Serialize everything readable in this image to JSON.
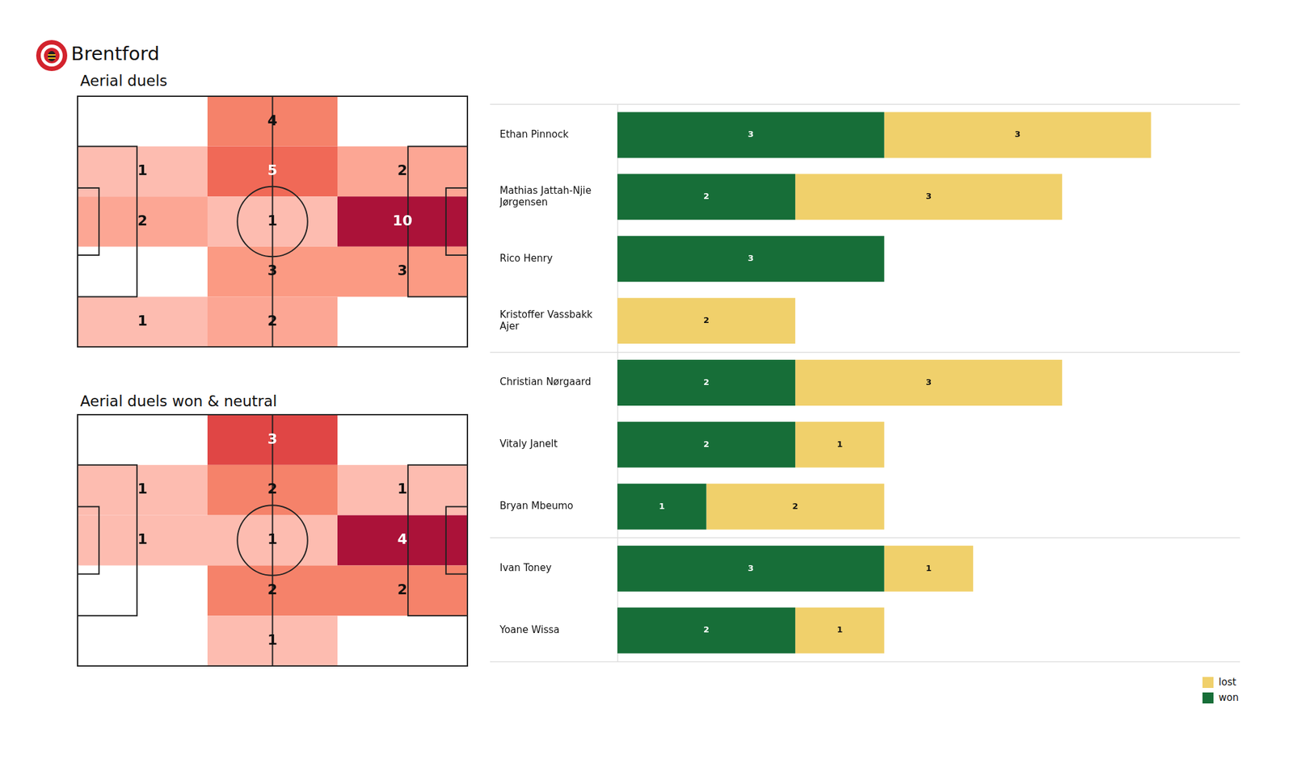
{
  "title": "Brentford",
  "chart_data": [
    {
      "type": "heatmap",
      "title": "Aerial duels",
      "cells": [
        [
          null,
          4,
          null
        ],
        [
          1,
          5,
          2
        ],
        [
          2,
          1,
          10
        ],
        [
          null,
          3,
          3
        ],
        [
          1,
          2,
          null
        ]
      ],
      "tick_labels": false
    },
    {
      "type": "heatmap",
      "title": "Aerial duels won & neutral",
      "cells": [
        [
          null,
          3,
          null
        ],
        [
          1,
          2,
          1
        ],
        [
          1,
          1,
          4
        ],
        [
          null,
          2,
          2
        ],
        [
          null,
          1,
          null
        ]
      ],
      "tick_labels": false
    },
    {
      "type": "bar",
      "orientation": "horizontal",
      "stacked": true,
      "data_labels": true,
      "legend": "lower right",
      "grid": false,
      "tick_labels": "y",
      "categories": [
        "Ethan Pinnock",
        "Mathias Jattah-Njie Jørgensen",
        "Rico Henry",
        "Kristoffer Vassbakk Ajer",
        "Christian Nørgaard",
        "Vitaly Janelt",
        "Bryan Mbeumo",
        "Ivan Toney",
        "Yoane Wissa"
      ],
      "group_sizes": [
        4,
        3,
        2
      ],
      "xlim": [
        0,
        7
      ],
      "series": [
        {
          "name": "won",
          "color": "#176e38",
          "values": [
            3,
            2,
            3,
            null,
            2,
            2,
            1,
            3,
            2
          ]
        },
        {
          "name": "lost",
          "color": "#f0d06b",
          "values": [
            3,
            3,
            null,
            2,
            3,
            1,
            2,
            1,
            1
          ]
        }
      ]
    }
  ]
}
